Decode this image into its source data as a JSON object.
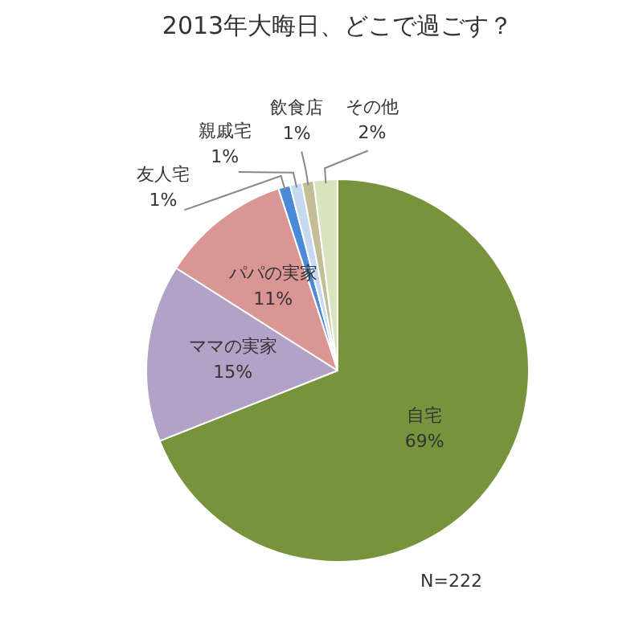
{
  "chart_data": {
    "type": "pie",
    "title": "2013年大晦日、どこで過ごす？",
    "categories": [
      "自宅",
      "ママの実家",
      "パパの実家",
      "友人宅",
      "親戚宅",
      "飲食店",
      "その他"
    ],
    "values": [
      69,
      15,
      11,
      1,
      1,
      1,
      2
    ],
    "value_labels": [
      "69%",
      "15%",
      "11%",
      "1%",
      "1%",
      "1%",
      "2%"
    ],
    "colors": [
      "#77933c",
      "#b3a2c7",
      "#d99694",
      "#4a8ad6",
      "#c6d9f1",
      "#c4bd97",
      "#d7e4bd"
    ],
    "legend": false,
    "annotations": [
      "N=222"
    ]
  }
}
